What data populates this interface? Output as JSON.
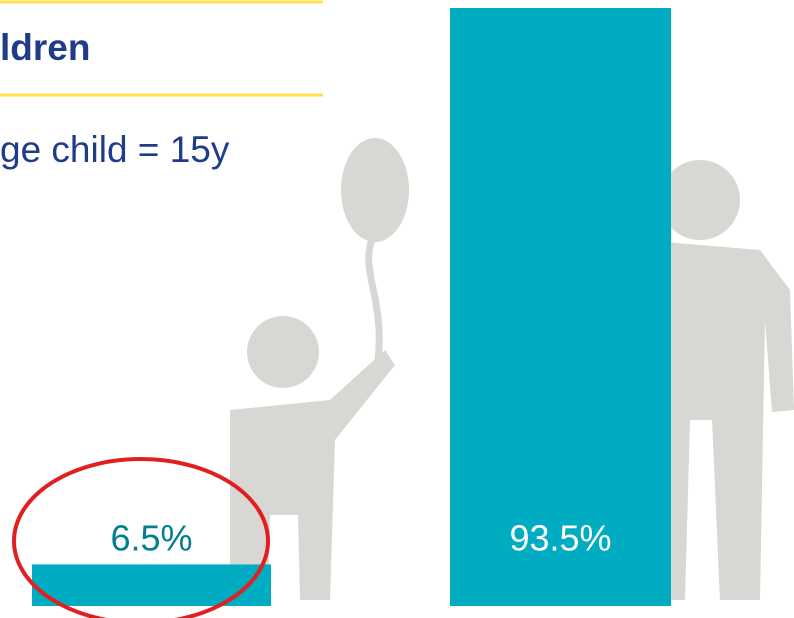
{
  "header": {
    "title": "ldren",
    "subtitle": "ge child = 15y"
  },
  "chart_data": {
    "type": "bar",
    "categories": [
      null,
      null
    ],
    "values": [
      6.5,
      93.5
    ],
    "value_labels": [
      "6.5%",
      "93.5%"
    ],
    "color": "#00acc1"
  }
}
